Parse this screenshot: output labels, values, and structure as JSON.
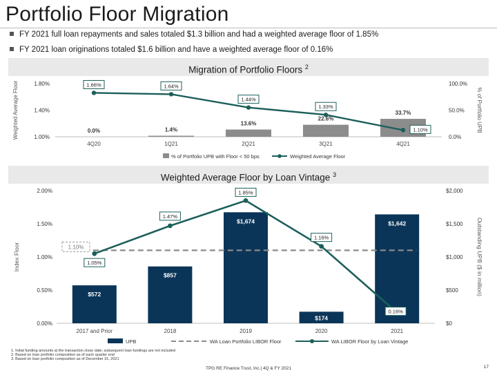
{
  "slide": {
    "title": "Portfolio Floor Migration",
    "bullets": [
      "FY 2021 full loan repayments and sales totaled $1.3 billion and had a weighted average floor of 1.85%",
      "FY 2021 loan originations totaled $1.6 billion and have a weighted average floor of 0.16%"
    ],
    "footnotes": [
      "1. Initial funding amounts at the transaction close date; subsequent loan fundings are not included",
      "2. Based on loan portfolio composition as of each quarter end",
      "3. Based on loan portfolio composition as of December 31, 2021"
    ],
    "footer": "TPG RE Finance Trust, Inc.| 4Q & FY 2021",
    "page_number": "17"
  },
  "colors": {
    "navy": "#0b3558",
    "teal": "#1b5f5a",
    "gray_bar": "#8c8c8c",
    "dashed": "#8a8a8a",
    "band": "#e9e9e9"
  },
  "chart_data": [
    {
      "type": "bar+line",
      "title": "Migration of Portfolio Floors",
      "title_sup": "2",
      "categories": [
        "4Q20",
        "1Q21",
        "2Q21",
        "3Q21",
        "4Q21"
      ],
      "series": [
        {
          "name": "% of Portfolio UPB with Floor < 50 bps",
          "type": "bar",
          "axis": "right",
          "values": [
            0.0,
            1.4,
            13.6,
            22.6,
            33.7
          ],
          "labels": [
            "0.0%",
            "1.4%",
            "13.6%",
            "22.6%",
            "33.7%"
          ]
        },
        {
          "name": "Weighted Average Floor",
          "type": "line",
          "axis": "left",
          "values": [
            1.66,
            1.64,
            1.44,
            1.33,
            1.1
          ],
          "labels": [
            "1.66%",
            "1.64%",
            "1.44%",
            "1.33%",
            "1.10%"
          ]
        }
      ],
      "ylabel": "Weighted Average Floor",
      "ylabel_right": "% of Portfolio UPB",
      "yticks": [
        "1.80%",
        "1.40%",
        "1.00%"
      ],
      "yticks_right": [
        "100.0%",
        "50.0%",
        "0.0%"
      ],
      "ylim": [
        1.0,
        1.8
      ],
      "ylim_right": [
        0,
        100
      ],
      "legend": "bottom"
    },
    {
      "type": "bar+line",
      "title": "Weighted Average Floor by Loan Vintage",
      "title_sup": "3",
      "categories": [
        "2017 and Prior",
        "2018",
        "2019",
        "2020",
        "2021"
      ],
      "series": [
        {
          "name": "UPB",
          "type": "bar",
          "axis": "right",
          "values": [
            572,
            857,
            1674,
            174,
            1642
          ],
          "labels": [
            "$572",
            "$857",
            "$1,674",
            "$174",
            "$1,642"
          ]
        },
        {
          "name": "WA Loan Portfolio LIBOR Floor",
          "type": "dashed-line",
          "axis": "left",
          "values": [
            1.1,
            1.1,
            1.1,
            1.1,
            1.1
          ],
          "label": "1.10%"
        },
        {
          "name": "WA LIBOR Floor by Loan Vintage",
          "type": "line",
          "axis": "left",
          "values": [
            1.05,
            1.47,
            1.85,
            1.16,
            0.16
          ],
          "labels": [
            "1.05%",
            "1.47%",
            "1.85%",
            "1.16%",
            "0.16%"
          ]
        }
      ],
      "ylabel": "Index Floor",
      "ylabel_right": "Outstanding UPB ($ in million)",
      "yticks": [
        "2.00%",
        "1.50%",
        "1.00%",
        "0.50%",
        "0.00%"
      ],
      "yticks_right": [
        "$2,000",
        "$1,500",
        "$1,000",
        "$500",
        "$0"
      ],
      "ylim": [
        0,
        2.0
      ],
      "ylim_right": [
        0,
        2000
      ],
      "legend": "bottom"
    }
  ]
}
